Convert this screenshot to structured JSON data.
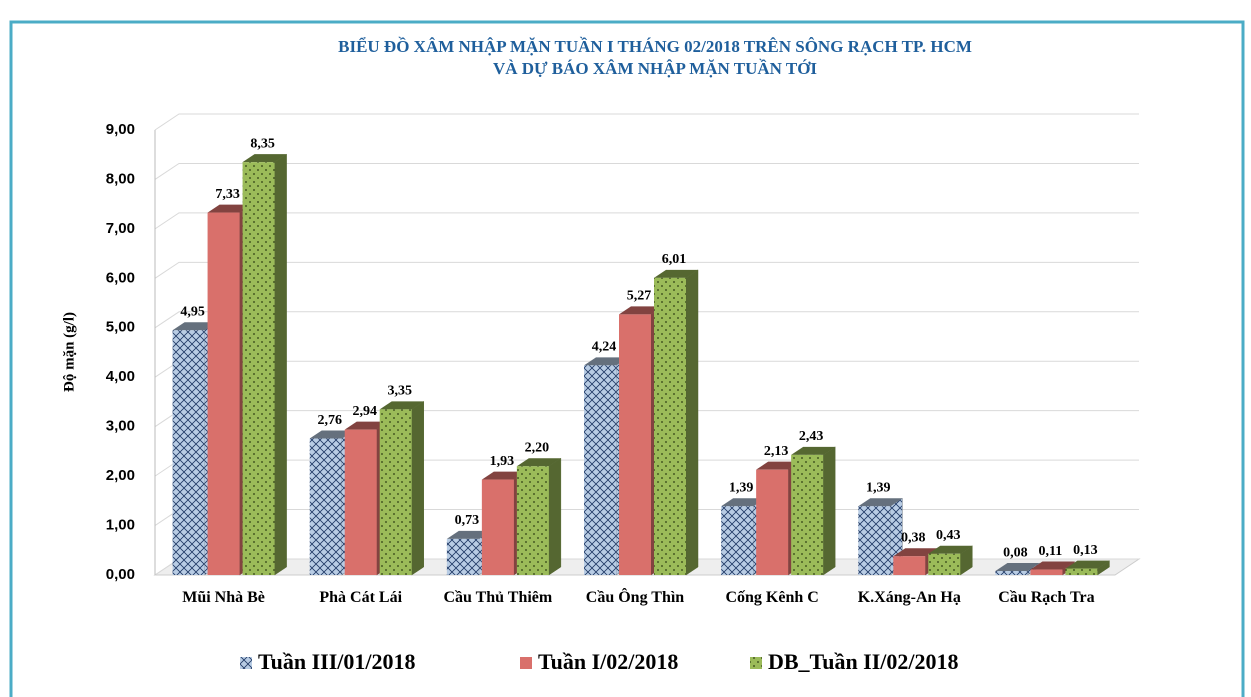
{
  "chart_data": {
    "type": "bar3d",
    "title": [
      "BIỂU ĐỒ XÂM NHẬP MẶN TUẦN I THÁNG 02/2018 TRÊN SÔNG RẠCH TP. HCM",
      "VÀ DỰ BÁO XÂM NHẬP MẶN TUẦN TỚI"
    ],
    "ylabel": "Độ mặn (g/l)",
    "categories": [
      "Mũi Nhà Bè",
      "Phà Cát Lái",
      "Cầu Thủ Thiêm",
      "Cầu Ông Thìn",
      "Cống Kênh C",
      "K.Xáng-An Hạ",
      "Cầu Rạch Tra"
    ],
    "series": [
      {
        "name": "Tuần III/01/2018",
        "color": "#b8cce4",
        "pattern": "crosshatch",
        "values": [
          4.95,
          2.76,
          0.73,
          4.24,
          1.39,
          1.39,
          0.08
        ],
        "value_labels": [
          "4,95",
          "2,76",
          "0,73",
          "4,24",
          "1,39",
          "1,39",
          "0,08"
        ]
      },
      {
        "name": "Tuần I/02/2018",
        "color": "#d9706b",
        "pattern": "solid",
        "values": [
          7.33,
          2.94,
          1.93,
          5.27,
          2.13,
          0.38,
          0.11
        ],
        "value_labels": [
          "7,33",
          "2,94",
          "1,93",
          "5,27",
          "2,13",
          "0,38",
          "0,11"
        ]
      },
      {
        "name": "DB_Tuần II/02/2018",
        "color": "#9bbb59",
        "pattern": "dots",
        "values": [
          8.35,
          3.35,
          2.2,
          6.01,
          2.43,
          0.43,
          0.13
        ],
        "value_labels": [
          "8,35",
          "3,35",
          "2,20",
          "6,01",
          "2,43",
          "0,43",
          "0,13"
        ]
      }
    ],
    "ylim": [
      0,
      9
    ],
    "yticks": [
      {
        "value": 0,
        "label": "0,00"
      },
      {
        "value": 1,
        "label": "1,00"
      },
      {
        "value": 2,
        "label": "2,00"
      },
      {
        "value": 3,
        "label": "3,00"
      },
      {
        "value": 4,
        "label": "4,00"
      },
      {
        "value": 5,
        "label": "5,00"
      },
      {
        "value": 6,
        "label": "6,00"
      },
      {
        "value": 7,
        "label": "7,00"
      },
      {
        "value": 8,
        "label": "8,00"
      },
      {
        "value": 9,
        "label": "9,00"
      }
    ],
    "grid": true,
    "legend": "bottom"
  }
}
